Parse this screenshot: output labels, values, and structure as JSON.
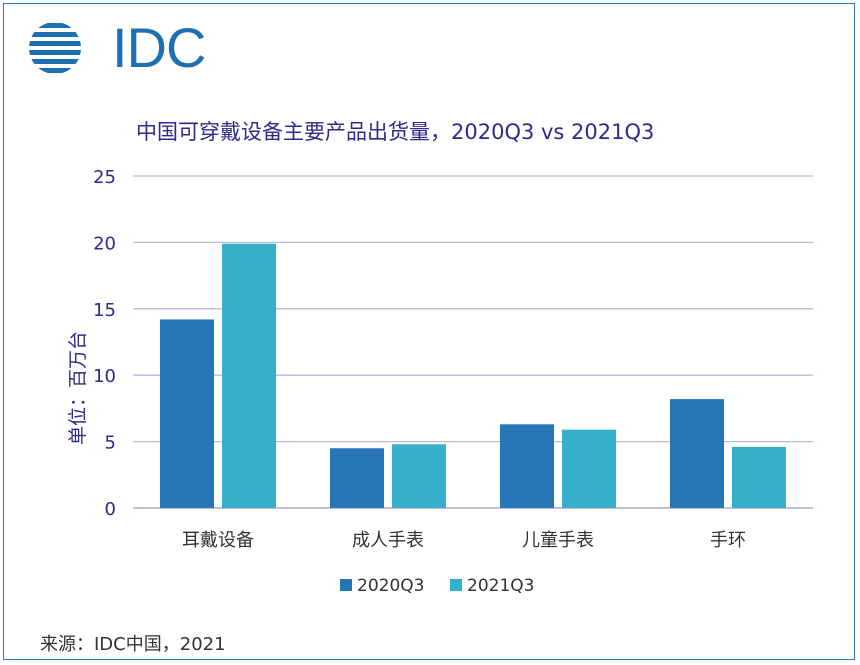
{
  "logo": {
    "text": "IDC",
    "color": "#1f6fb3"
  },
  "source": "来源：IDC中国，2021",
  "chart_data": {
    "type": "bar",
    "title": "中国可穿戴设备主要产品出货量，2020Q3 vs 2021Q3",
    "xlabel": "",
    "ylabel": "单位：百万台",
    "ylim": [
      0,
      25
    ],
    "yticks": [
      0,
      5,
      10,
      15,
      20,
      25
    ],
    "grid": true,
    "legend_position": "bottom",
    "categories": [
      "耳戴设备",
      "成人手表",
      "儿童手表",
      "手环"
    ],
    "series": [
      {
        "name": "2020Q3",
        "color": "#2776b8",
        "values": [
          14.2,
          4.5,
          6.3,
          8.2
        ]
      },
      {
        "name": "2021Q3",
        "color": "#36b0c9",
        "values": [
          19.9,
          4.8,
          5.9,
          4.6
        ]
      }
    ]
  }
}
